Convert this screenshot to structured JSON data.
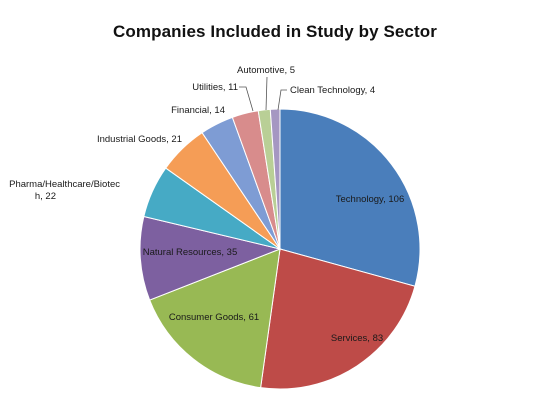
{
  "chart_data": {
    "type": "pie",
    "title": "Companies Included in Study by Sector",
    "slices": [
      {
        "label": "Technology, 106",
        "value": 106,
        "color": "#4A7EBB"
      },
      {
        "label": "Services, 83",
        "value": 83,
        "color": "#BE4B48"
      },
      {
        "label": "Consumer Goods, 61",
        "value": 61,
        "color": "#98B954"
      },
      {
        "label": "Natural Resources, 35",
        "value": 35,
        "color": "#7D60A0"
      },
      {
        "label": "Pharma/Healthcare/Biotech, 22",
        "label_lines": [
          "Pharma/Healthcare/Biotec",
          "h, 22"
        ],
        "value": 22,
        "color": "#46AAC5"
      },
      {
        "label": "Industrial Goods, 21",
        "value": 21,
        "color": "#F59D56"
      },
      {
        "label": "Financial, 14",
        "value": 14,
        "color": "#7E9CD4"
      },
      {
        "label": "Utilities, 11",
        "value": 11,
        "color": "#D88C8C"
      },
      {
        "label": "Automotive, 5",
        "value": 5,
        "color": "#B9CF96"
      },
      {
        "label": "Clean Technology, 4",
        "value": 4,
        "color": "#A597C2"
      }
    ],
    "legend": "none"
  }
}
